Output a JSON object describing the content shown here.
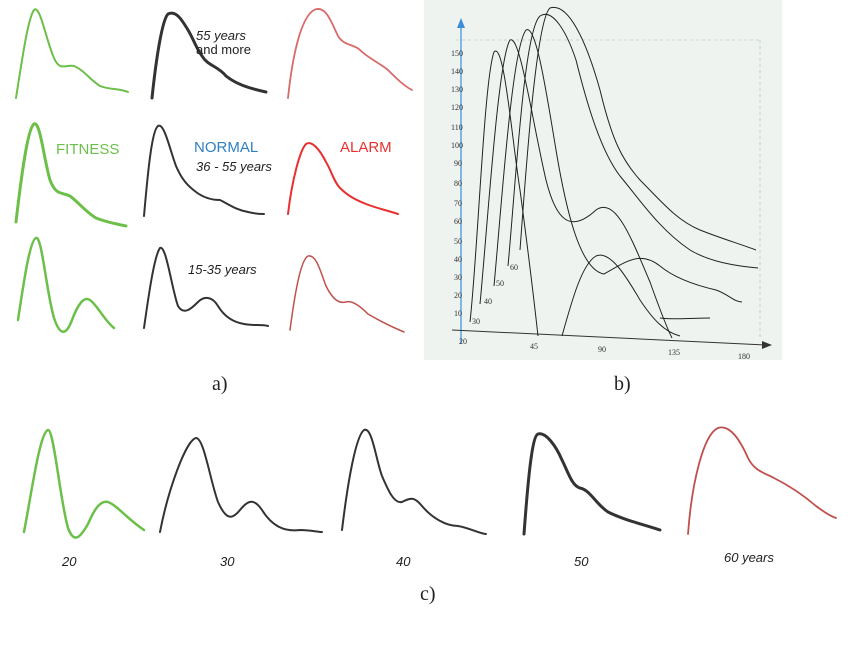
{
  "panel_a": {
    "caption": "a)",
    "row_labels": {
      "top_line1": "55 years",
      "top_line2": "and more",
      "mid": "36 - 55 years",
      "bottom": "15-35 years"
    },
    "columns": {
      "fitness": "FITNESS",
      "normal": "NORMAL",
      "alarm": "ALARM"
    }
  },
  "panel_b": {
    "caption": "b)",
    "y_ticks": [
      "150",
      "140",
      "130",
      "120",
      "110",
      "100",
      "90",
      "80",
      "70",
      "60",
      "50",
      "40",
      "30",
      "20",
      "10"
    ],
    "x_ticks": [
      "20",
      "45",
      "90",
      "135",
      "180"
    ],
    "curve_labels": [
      "30",
      "40",
      "50",
      "60"
    ]
  },
  "panel_c": {
    "caption": "c)",
    "ages": [
      "20",
      "30",
      "40",
      "50"
    ],
    "last_age": "60 years"
  },
  "colors": {
    "fitness": "#6cc04a",
    "normal": "#333333",
    "alarm": "#e83030",
    "alarm_faded": "#c0504d",
    "normal_label": "#2f7fc1",
    "panel_b_bg": "#eef3ef",
    "axis": "#3b8fd9"
  }
}
